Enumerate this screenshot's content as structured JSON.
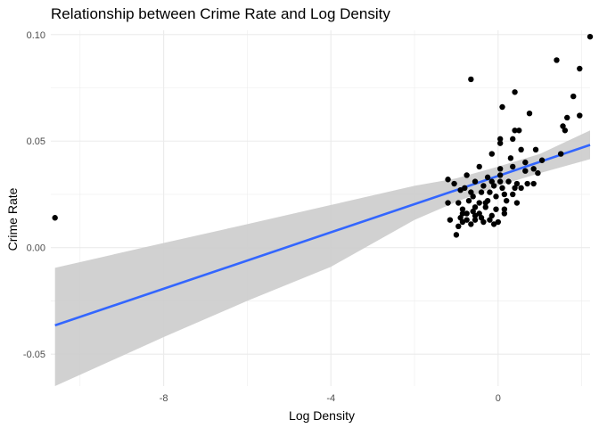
{
  "chart_data": {
    "type": "scatter",
    "title": "Relationship between Crime Rate and Log Density",
    "xlabel": "Log Density",
    "ylabel": "Crime Rate",
    "xlim": [
      -10.7,
      2.2
    ],
    "ylim": [
      -0.065,
      0.102
    ],
    "x_ticks": [
      -8,
      -4,
      0
    ],
    "x_tick_labels": [
      "-8",
      "-4",
      "0"
    ],
    "y_ticks": [
      -0.05,
      0.0,
      0.05,
      0.1
    ],
    "y_tick_labels": [
      "-0.05",
      "0.00",
      "0.05",
      "0.10"
    ],
    "grid": true,
    "legend": "none",
    "point_color": "#000000",
    "line_color": "#3366ff",
    "ribbon_color": "#cccccc",
    "points": [
      [
        -10.6,
        0.014
      ],
      [
        2.2,
        0.099
      ],
      [
        1.4,
        0.088
      ],
      [
        1.95,
        0.084
      ],
      [
        1.8,
        0.071
      ],
      [
        1.65,
        0.061
      ],
      [
        1.95,
        0.062
      ],
      [
        1.55,
        0.057
      ],
      [
        1.6,
        0.055
      ],
      [
        1.5,
        0.044
      ],
      [
        -0.65,
        0.079
      ],
      [
        0.1,
        0.066
      ],
      [
        0.4,
        0.073
      ],
      [
        0.75,
        0.063
      ],
      [
        0.4,
        0.055
      ],
      [
        0.5,
        0.055
      ],
      [
        0.05,
        0.051
      ],
      [
        0.05,
        0.049
      ],
      [
        0.35,
        0.051
      ],
      [
        0.55,
        0.046
      ],
      [
        -0.15,
        0.044
      ],
      [
        0.9,
        0.046
      ],
      [
        1.05,
        0.041
      ],
      [
        0.3,
        0.042
      ],
      [
        0.65,
        0.04
      ],
      [
        0.05,
        0.037
      ],
      [
        0.35,
        0.038
      ],
      [
        0.85,
        0.037
      ],
      [
        0.65,
        0.036
      ],
      [
        0.95,
        0.035
      ],
      [
        -0.45,
        0.038
      ],
      [
        -0.15,
        0.031
      ],
      [
        -0.75,
        0.034
      ],
      [
        -1.2,
        0.032
      ],
      [
        -1.05,
        0.03
      ],
      [
        -0.55,
        0.031
      ],
      [
        0.05,
        0.031
      ],
      [
        0.25,
        0.031
      ],
      [
        0.45,
        0.03
      ],
      [
        0.7,
        0.03
      ],
      [
        0.85,
        0.03
      ],
      [
        0.55,
        0.028
      ],
      [
        0.4,
        0.028
      ],
      [
        0.1,
        0.028
      ],
      [
        -0.1,
        0.029
      ],
      [
        -0.35,
        0.029
      ],
      [
        -0.8,
        0.028
      ],
      [
        -0.9,
        0.027
      ],
      [
        -0.65,
        0.026
      ],
      [
        -0.4,
        0.026
      ],
      [
        -0.2,
        0.026
      ],
      [
        0.15,
        0.025
      ],
      [
        0.35,
        0.025
      ],
      [
        -0.05,
        0.024
      ],
      [
        -0.6,
        0.024
      ],
      [
        -0.7,
        0.022
      ],
      [
        -0.45,
        0.021
      ],
      [
        -0.25,
        0.022
      ],
      [
        0.2,
        0.022
      ],
      [
        0.45,
        0.021
      ],
      [
        -1.2,
        0.021
      ],
      [
        -0.95,
        0.021
      ],
      [
        -0.55,
        0.019
      ],
      [
        -0.3,
        0.019
      ],
      [
        -0.05,
        0.018
      ],
      [
        0.15,
        0.018
      ],
      [
        -0.85,
        0.016
      ],
      [
        -0.6,
        0.017
      ],
      [
        -0.45,
        0.016
      ],
      [
        -0.15,
        0.015
      ],
      [
        -1.15,
        0.013
      ],
      [
        -0.9,
        0.014
      ],
      [
        -0.75,
        0.013
      ],
      [
        -0.55,
        0.015
      ],
      [
        -0.4,
        0.014
      ],
      [
        -0.2,
        0.013
      ],
      [
        0.0,
        0.012
      ],
      [
        -0.1,
        0.011
      ],
      [
        -0.35,
        0.012
      ],
      [
        -0.65,
        0.011
      ],
      [
        -0.85,
        0.012
      ],
      [
        -0.95,
        0.01
      ],
      [
        -1.0,
        0.006
      ],
      [
        -0.75,
        0.016
      ],
      [
        0.15,
        0.016
      ],
      [
        -0.25,
        0.033
      ],
      [
        0.05,
        0.034
      ],
      [
        -0.85,
        0.018
      ],
      [
        -0.55,
        0.013
      ],
      [
        -0.3,
        0.021
      ]
    ],
    "fit_line": {
      "x": [
        -10.6,
        2.2
      ],
      "y": [
        -0.0365,
        0.0482
      ]
    },
    "confidence_band": {
      "x": [
        -10.6,
        -8,
        -6,
        -4,
        -2,
        -1,
        0,
        1,
        2.2
      ],
      "upper": [
        -0.0095,
        0.0022,
        0.011,
        0.02,
        0.029,
        0.0325,
        0.038,
        0.044,
        0.055
      ],
      "lower": [
        -0.065,
        -0.042,
        -0.025,
        -0.009,
        0.013,
        0.0215,
        0.029,
        0.035,
        0.0415
      ]
    }
  }
}
